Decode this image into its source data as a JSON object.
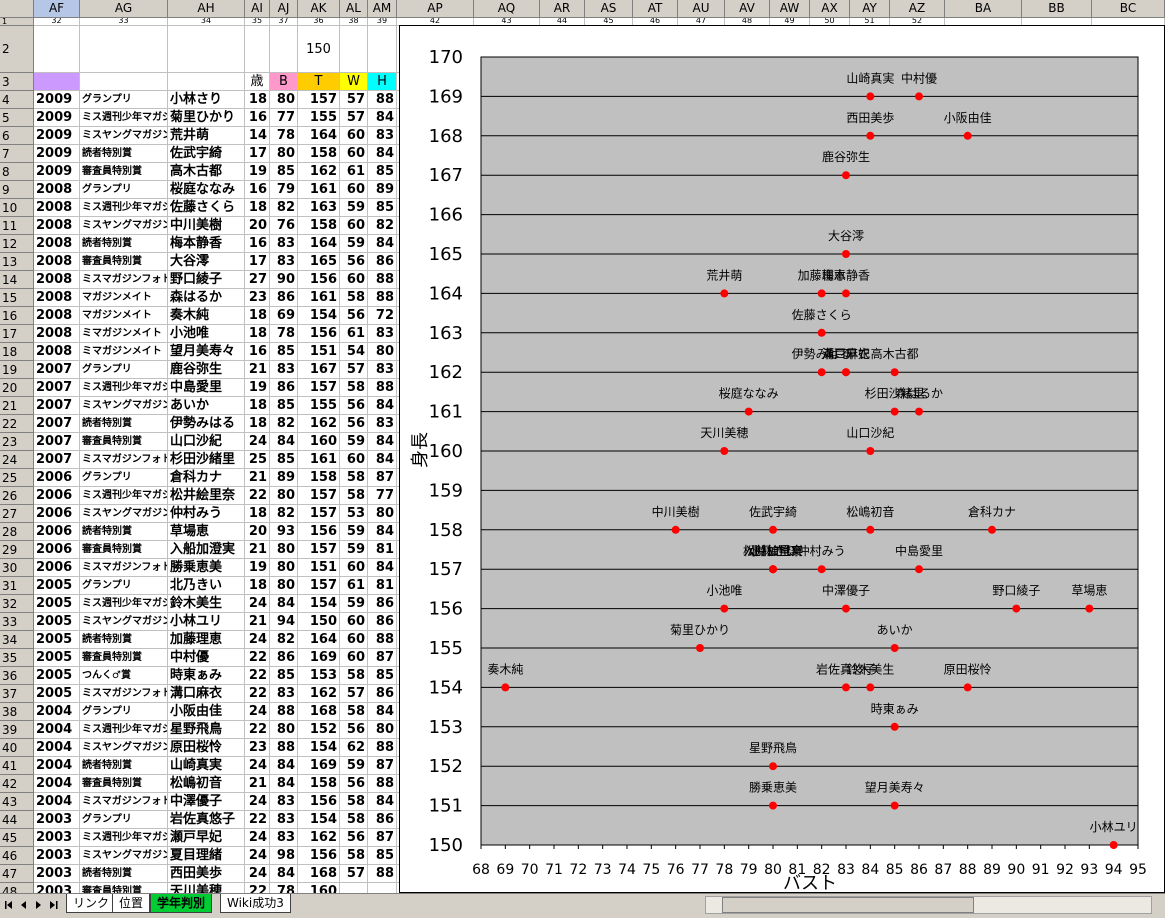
{
  "sheet": {
    "columns": [
      "AF",
      "AG",
      "AH",
      "AI",
      "AJ",
      "AK",
      "AL",
      "AM",
      "AP",
      "AQ",
      "AR",
      "AS",
      "AT",
      "AU",
      "AV",
      "AW",
      "AX",
      "AY",
      "AZ",
      "BA",
      "BB",
      "BC"
    ],
    "row_numbers": [
      1,
      2,
      3,
      4,
      5,
      6,
      7,
      8,
      9,
      10,
      11,
      12,
      13,
      14,
      15,
      16,
      17,
      18,
      19,
      20,
      21,
      22,
      23,
      24,
      25,
      26,
      27,
      28,
      29,
      30,
      31,
      32,
      33,
      34,
      35,
      36,
      37,
      38,
      39,
      40,
      41,
      42,
      43,
      44,
      45,
      46,
      47,
      48
    ],
    "row1": [
      32,
      33,
      34,
      35,
      37,
      36,
      38,
      39,
      42,
      43,
      44,
      45,
      46,
      47,
      48,
      49,
      50,
      51,
      52
    ],
    "row2_ak": 150,
    "header_row": [
      "歳",
      "B",
      "T",
      "W",
      "H"
    ],
    "rows": [
      [
        2009,
        "グランプリ",
        "小林さり",
        18,
        80,
        157,
        57,
        88
      ],
      [
        2009,
        "ミス週刊少年マガジン",
        "菊里ひかり",
        16,
        77,
        155,
        57,
        84
      ],
      [
        2009,
        "ミスヤングマガジン",
        "荒井萌",
        14,
        78,
        164,
        60,
        83
      ],
      [
        2009,
        "読者特別賞",
        "佐武宇綺",
        17,
        80,
        158,
        60,
        84
      ],
      [
        2009,
        "審査員特別賞",
        "高木古都",
        19,
        85,
        162,
        61,
        85
      ],
      [
        2008,
        "グランプリ",
        "桜庭ななみ",
        16,
        79,
        161,
        60,
        89
      ],
      [
        2008,
        "ミス週刊少年マガジン",
        "佐藤さくら",
        18,
        82,
        163,
        59,
        85
      ],
      [
        2008,
        "ミスヤングマガジン",
        "中川美樹",
        20,
        76,
        158,
        60,
        82
      ],
      [
        2008,
        "読者特別賞",
        "梅本静香",
        16,
        83,
        164,
        59,
        84
      ],
      [
        2008,
        "審査員特別賞",
        "大谷澪",
        17,
        83,
        165,
        56,
        86
      ],
      [
        2008,
        "ミスマガジンフォト",
        "野口綾子",
        27,
        90,
        156,
        60,
        88
      ],
      [
        2008,
        "マガジンメイト",
        "森はるか",
        23,
        86,
        161,
        58,
        88
      ],
      [
        2008,
        "マガジンメイト",
        "奏木純",
        18,
        69,
        154,
        56,
        72
      ],
      [
        2008,
        "ミマガジンメイト",
        "小池唯",
        18,
        78,
        156,
        61,
        83
      ],
      [
        2008,
        "ミマガジンメイト",
        "望月美寿々",
        16,
        85,
        151,
        54,
        80
      ],
      [
        2007,
        "グランプリ",
        "鹿谷弥生",
        21,
        83,
        167,
        57,
        83
      ],
      [
        2007,
        "ミス週刊少年マガジン",
        "中島愛里",
        19,
        86,
        157,
        58,
        88
      ],
      [
        2007,
        "ミスヤングマガジン",
        "あいか",
        18,
        85,
        155,
        56,
        84
      ],
      [
        2007,
        "読者特別賞",
        "伊勢みはる",
        18,
        82,
        162,
        56,
        83
      ],
      [
        2007,
        "審査員特別賞",
        "山口沙紀",
        24,
        84,
        160,
        59,
        84
      ],
      [
        2007,
        "ミスマガジンフォト",
        "杉田沙緒里",
        25,
        85,
        161,
        60,
        84
      ],
      [
        2006,
        "グランプリ",
        "倉科カナ",
        21,
        89,
        158,
        58,
        87
      ],
      [
        2006,
        "ミス週刊少年マガジン",
        "松井絵里奈",
        22,
        80,
        157,
        58,
        77
      ],
      [
        2006,
        "ミスヤングマガジン",
        "仲村みう",
        18,
        82,
        157,
        53,
        80
      ],
      [
        2006,
        "読者特別賞",
        "草場恵",
        20,
        93,
        156,
        59,
        84
      ],
      [
        2006,
        "審査員特別賞",
        "入船加澄実",
        21,
        80,
        157,
        59,
        81
      ],
      [
        2006,
        "ミスマガジンフォト",
        "勝乗恵美",
        19,
        80,
        151,
        60,
        84
      ],
      [
        2005,
        "グランプリ",
        "北乃きい",
        18,
        80,
        157,
        61,
        81
      ],
      [
        2005,
        "ミス週刊少年マガジン",
        "鈴木美生",
        24,
        84,
        154,
        59,
        86
      ],
      [
        2005,
        "ミスヤングマガジン",
        "小林ユリ",
        21,
        94,
        150,
        60,
        86
      ],
      [
        2005,
        "読者特別賞",
        "加藤理恵",
        24,
        82,
        164,
        60,
        88
      ],
      [
        2005,
        "審査員特別賞",
        "中村優",
        22,
        86,
        169,
        60,
        87
      ],
      [
        2005,
        "つんく♂賞",
        "時東ぁみ",
        22,
        85,
        153,
        58,
        85
      ],
      [
        2005,
        "ミスマガジンフォト",
        "溝口麻衣",
        22,
        83,
        162,
        57,
        86
      ],
      [
        2004,
        "グランプリ",
        "小阪由佳",
        24,
        88,
        168,
        58,
        84
      ],
      [
        2004,
        "ミス週刊少年マガジン",
        "星野飛鳥",
        22,
        80,
        152,
        56,
        80
      ],
      [
        2004,
        "ミスヤングマガジン",
        "原田桜怜",
        23,
        88,
        154,
        62,
        88
      ],
      [
        2004,
        "読者特別賞",
        "山崎真実",
        24,
        84,
        169,
        59,
        87
      ],
      [
        2004,
        "審査員特別賞",
        "松嶋初音",
        21,
        84,
        158,
        56,
        88
      ],
      [
        2004,
        "ミスマガジンフォト",
        "中澤優子",
        24,
        83,
        156,
        58,
        84
      ],
      [
        2003,
        "グランプリ",
        "岩佐真悠子",
        22,
        83,
        154,
        58,
        86
      ],
      [
        2003,
        "ミス週刊少年マガジン",
        "瀬戸早妃",
        24,
        83,
        162,
        56,
        87
      ],
      [
        2003,
        "ミスヤングマガジン",
        "夏目理緒",
        24,
        98,
        156,
        58,
        85
      ],
      [
        2003,
        "読者特別賞",
        "西田美歩",
        24,
        84,
        168,
        57,
        88
      ],
      [
        2003,
        "審査員特別賞",
        "天川美穂",
        22,
        78,
        160
      ]
    ]
  },
  "tabs": [
    "リンク",
    "位置",
    "学年判別",
    "Wiki成功3"
  ],
  "chart_data": {
    "type": "scatter",
    "x_label": "バスト",
    "y_label": "身長",
    "color": "#ff0000",
    "background": "#c0c0c0",
    "grid": true,
    "xlim": [
      68,
      95
    ],
    "xticks": [
      68,
      69,
      70,
      71,
      72,
      73,
      74,
      75,
      76,
      77,
      78,
      79,
      80,
      81,
      82,
      83,
      84,
      85,
      86,
      87,
      88,
      89,
      90,
      91,
      92,
      93,
      94,
      95
    ],
    "ylim": [
      150,
      170
    ],
    "yticks": [
      150,
      151,
      152,
      153,
      154,
      155,
      156,
      157,
      158,
      159,
      160,
      161,
      162,
      163,
      164,
      165,
      166,
      167,
      168,
      169,
      170
    ],
    "labels": [
      "小林さり",
      "菊里ひかり",
      "荒井萌",
      "佐武宇綺",
      "高木古都",
      "桜庭ななみ",
      "佐藤さくら",
      "中川美樹",
      "梅本静香",
      "大谷澪",
      "野口綾子",
      "森はるか",
      "奏木純",
      "小池唯",
      "望月美寿々",
      "鹿谷弥生",
      "中島愛里",
      "あいか",
      "伊勢みはる",
      "山口沙紀",
      "杉田沙緒里",
      "倉科カナ",
      "松井絵里奈",
      "仲村みう",
      "草場恵",
      "入船加澄実",
      "勝乗恵美",
      "北乃きい",
      "鈴木美生",
      "小林ユリ",
      "加藤理恵",
      "中村優",
      "時東ぁみ",
      "溝口麻衣",
      "小阪由佳",
      "星野飛鳥",
      "原田桜怜",
      "山崎真実",
      "松嶋初音",
      "中澤優子",
      "岩佐真悠子",
      "瀬戸早妃",
      "西田美歩",
      "天川美穂"
    ],
    "x": [
      80,
      77,
      78,
      80,
      85,
      79,
      82,
      76,
      83,
      83,
      90,
      86,
      69,
      78,
      85,
      83,
      86,
      85,
      82,
      84,
      85,
      89,
      80,
      82,
      93,
      80,
      80,
      80,
      84,
      94,
      82,
      86,
      85,
      83,
      88,
      80,
      88,
      84,
      84,
      83,
      83,
      83,
      84,
      78
    ],
    "values": [
      157,
      155,
      164,
      158,
      162,
      161,
      163,
      158,
      164,
      165,
      156,
      161,
      154,
      156,
      151,
      167,
      157,
      155,
      162,
      160,
      161,
      158,
      157,
      157,
      156,
      157,
      151,
      157,
      154,
      150,
      164,
      169,
      153,
      162,
      168,
      152,
      154,
      169,
      158,
      156,
      154,
      162,
      168,
      160
    ]
  }
}
